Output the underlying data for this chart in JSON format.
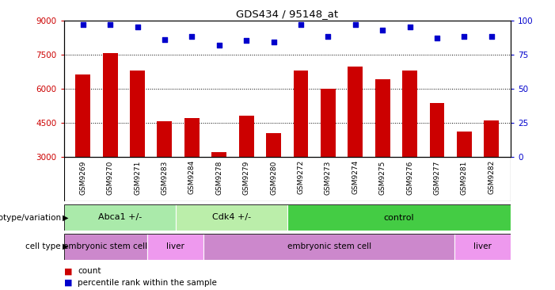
{
  "title": "GDS434 / 95148_at",
  "samples": [
    "GSM9269",
    "GSM9270",
    "GSM9271",
    "GSM9283",
    "GSM9284",
    "GSM9278",
    "GSM9279",
    "GSM9280",
    "GSM9272",
    "GSM9273",
    "GSM9274",
    "GSM9275",
    "GSM9276",
    "GSM9277",
    "GSM9281",
    "GSM9282"
  ],
  "counts": [
    6600,
    7550,
    6800,
    4550,
    4700,
    3200,
    4800,
    4050,
    6800,
    6000,
    6950,
    6400,
    6800,
    5350,
    4100,
    4600
  ],
  "percentiles": [
    97,
    97,
    95,
    86,
    88,
    82,
    85,
    84,
    97,
    88,
    97,
    93,
    95,
    87,
    88,
    88
  ],
  "ylim_left": [
    3000,
    9000
  ],
  "ylim_right": [
    0,
    100
  ],
  "yticks_left": [
    3000,
    4500,
    6000,
    7500,
    9000
  ],
  "yticks_right": [
    0,
    25,
    50,
    75,
    100
  ],
  "bar_color": "#cc0000",
  "dot_color": "#0000cc",
  "genotype_groups": [
    {
      "label": "Abca1 +/-",
      "start": 0,
      "end": 4,
      "color": "#aaeaaa"
    },
    {
      "label": "Cdk4 +/-",
      "start": 4,
      "end": 8,
      "color": "#bbeeaa"
    },
    {
      "label": "control",
      "start": 8,
      "end": 16,
      "color": "#44cc44"
    }
  ],
  "celltype_groups": [
    {
      "label": "embryonic stem cell",
      "start": 0,
      "end": 3,
      "color": "#cc88cc"
    },
    {
      "label": "liver",
      "start": 3,
      "end": 5,
      "color": "#ee99ee"
    },
    {
      "label": "embryonic stem cell",
      "start": 5,
      "end": 14,
      "color": "#cc88cc"
    },
    {
      "label": "liver",
      "start": 14,
      "end": 16,
      "color": "#ee99ee"
    }
  ],
  "genotype_label": "genotype/variation",
  "celltype_label": "cell type",
  "legend_count_label": "count",
  "legend_pct_label": "percentile rank within the sample",
  "ylabel_left_color": "#cc0000",
  "ylabel_right_color": "#0000cc",
  "xtick_bg_color": "#c8c8c8"
}
